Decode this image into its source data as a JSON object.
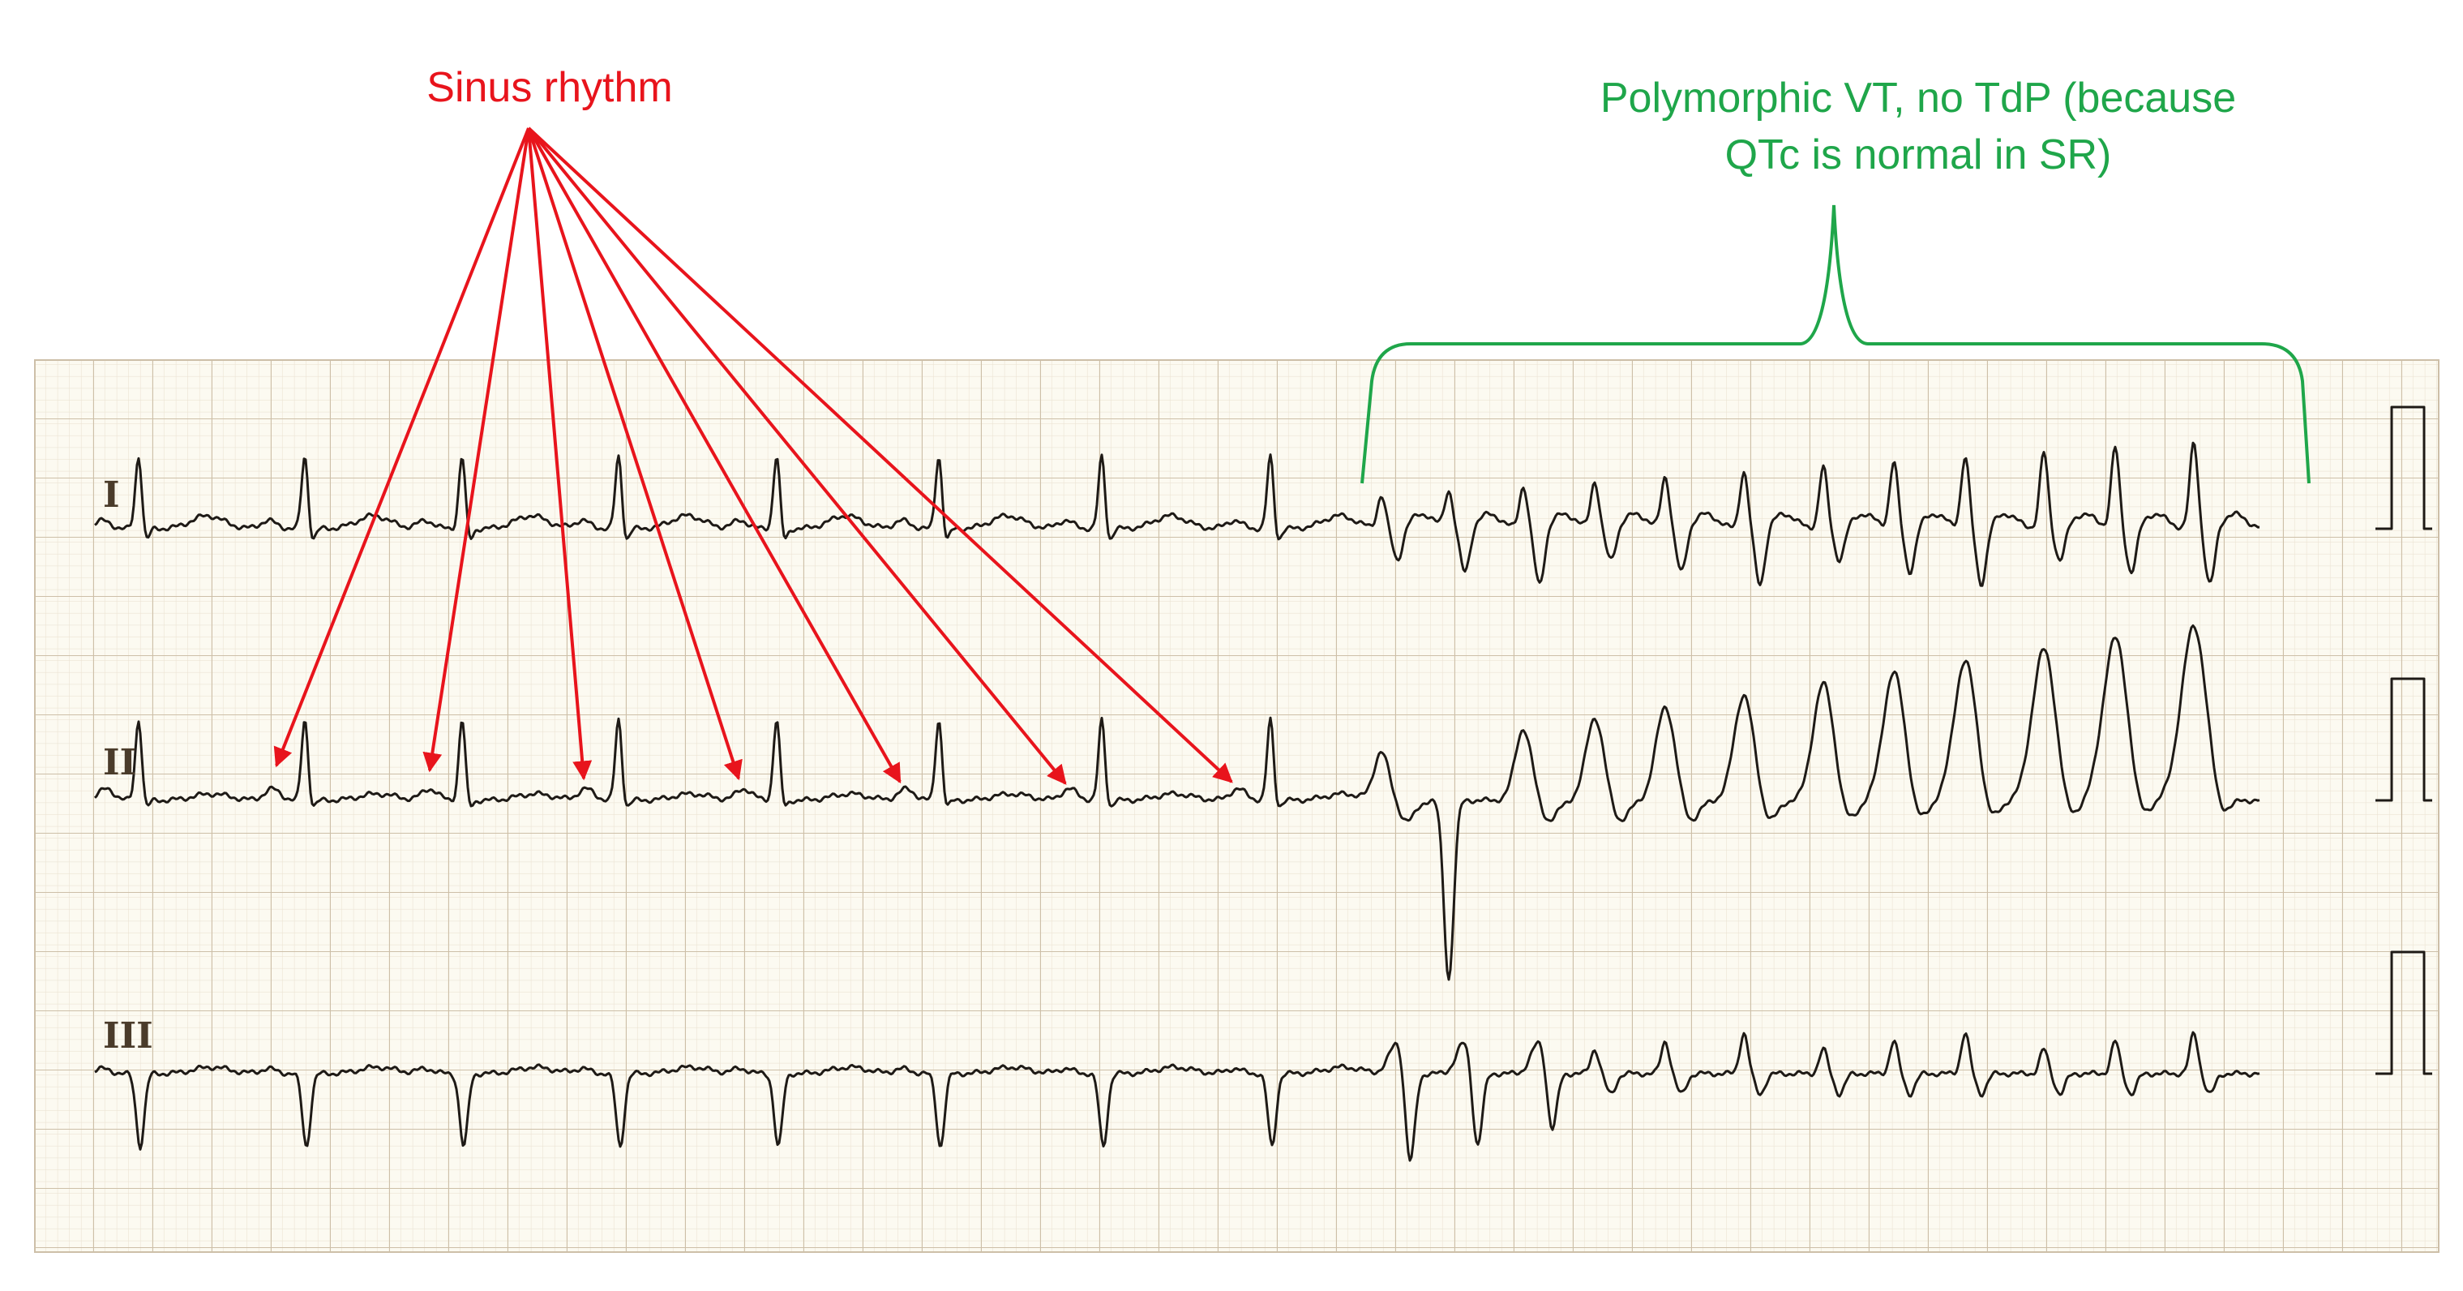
{
  "annotations": {
    "sinus": "Sinus rhythm",
    "vt": [
      "Polymorphic VT, no TdP (because",
      "QTc is normal in SR)"
    ]
  },
  "leads": [
    "I",
    "II",
    "III"
  ]
}
